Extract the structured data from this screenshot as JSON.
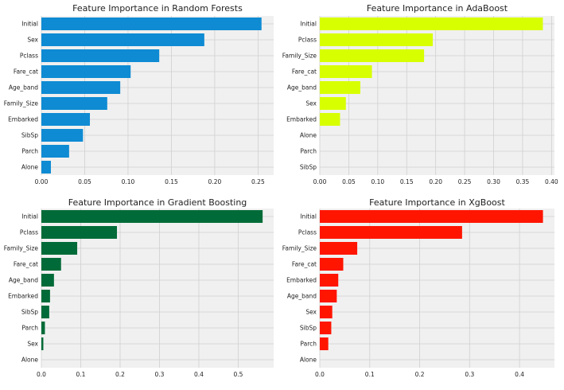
{
  "chart_data": [
    {
      "type": "bar",
      "orientation": "horizontal",
      "title": "Feature Importance in Random Forests",
      "color": "#0e8bd3",
      "categories": [
        "Initial",
        "Sex",
        "Pclass",
        "Fare_cat",
        "Age_band",
        "Family_Size",
        "Embarked",
        "SibSp",
        "Parch",
        "Alone"
      ],
      "values": [
        0.254,
        0.188,
        0.136,
        0.103,
        0.091,
        0.076,
        0.056,
        0.048,
        0.032,
        0.011
      ],
      "xticks": [
        "0.00",
        "0.05",
        "0.10",
        "0.15",
        "0.20",
        "0.25"
      ],
      "tick_values": [
        0,
        0.05,
        0.1,
        0.15,
        0.2,
        0.25
      ],
      "xlim": [
        0,
        0.268
      ],
      "grid": true
    },
    {
      "type": "bar",
      "orientation": "horizontal",
      "title": "Feature Importance in AdaBoost",
      "color": "#d8ff00",
      "categories": [
        "Initial",
        "Pclass",
        "Family_Size",
        "Fare_cat",
        "Age_band",
        "Sex",
        "Embarked",
        "Alone",
        "Parch",
        "SibSp"
      ],
      "values": [
        0.385,
        0.195,
        0.18,
        0.09,
        0.07,
        0.045,
        0.035,
        0,
        0,
        0
      ],
      "xticks": [
        "0.00",
        "0.05",
        "0.10",
        "0.15",
        "0.20",
        "0.25",
        "0.30",
        "0.35",
        "0.40"
      ],
      "tick_values": [
        0,
        0.05,
        0.1,
        0.15,
        0.2,
        0.25,
        0.3,
        0.35,
        0.4
      ],
      "xlim": [
        0,
        0.405
      ],
      "grid": true
    },
    {
      "type": "bar",
      "orientation": "horizontal",
      "title": "Feature Importance in Gradient Boosting",
      "color": "#006b38",
      "categories": [
        "Initial",
        "Pclass",
        "Family_Size",
        "Fare_cat",
        "Age_band",
        "Embarked",
        "SibSp",
        "Parch",
        "Sex",
        "Alone"
      ],
      "values": [
        0.562,
        0.192,
        0.091,
        0.05,
        0.032,
        0.022,
        0.02,
        0.009,
        0.005,
        0
      ],
      "xticks": [
        "0.0",
        "0.1",
        "0.2",
        "0.3",
        "0.4",
        "0.5"
      ],
      "tick_values": [
        0,
        0.1,
        0.2,
        0.3,
        0.4,
        0.5
      ],
      "xlim": [
        0,
        0.59
      ],
      "grid": true
    },
    {
      "type": "bar",
      "orientation": "horizontal",
      "title": "Feature Importance in XgBoost",
      "color": "#ff1500",
      "categories": [
        "Initial",
        "Pclass",
        "Family_Size",
        "Fare_cat",
        "Embarked",
        "Age_band",
        "Sex",
        "SibSp",
        "Parch",
        "Alone"
      ],
      "values": [
        0.447,
        0.285,
        0.075,
        0.047,
        0.037,
        0.034,
        0.025,
        0.023,
        0.017,
        0
      ],
      "xticks": [
        "0.0",
        "0.1",
        "0.2",
        "0.3",
        "0.4"
      ],
      "tick_values": [
        0,
        0.1,
        0.2,
        0.3,
        0.4
      ],
      "xlim": [
        0,
        0.47
      ],
      "grid": true
    }
  ]
}
